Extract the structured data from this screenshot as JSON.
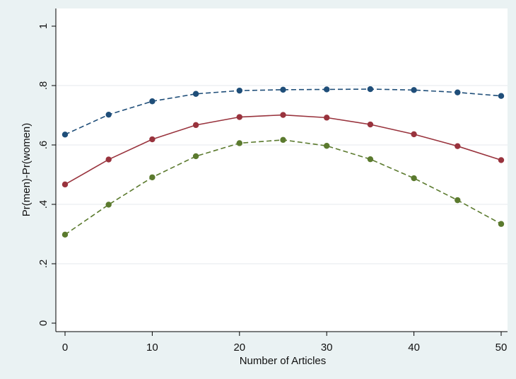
{
  "chart_data": {
    "type": "line",
    "xlabel": "Number of Articles",
    "ylabel": "Pr(men)-Pr(women)",
    "xlim": [
      0,
      50
    ],
    "ylim": [
      0,
      1
    ],
    "x_ticks": [
      0,
      10,
      20,
      30,
      40,
      50
    ],
    "x_tick_labels": [
      "0",
      "10",
      "20",
      "30",
      "40",
      "50"
    ],
    "y_ticks": [
      0,
      0.2,
      0.4,
      0.6,
      0.8,
      1
    ],
    "y_tick_labels": [
      "0",
      ".2",
      ".4",
      ".6",
      ".8",
      "1"
    ],
    "grid": "horizontal",
    "x": [
      0,
      5,
      10,
      15,
      20,
      25,
      30,
      35,
      40,
      45,
      50
    ],
    "series": [
      {
        "values": [
          0.635,
          0.702,
          0.747,
          0.772,
          0.783,
          0.786,
          0.787,
          0.788,
          0.785,
          0.777,
          0.765
        ],
        "color": "#1f4e79",
        "line_style": "dashed"
      },
      {
        "values": [
          0.467,
          0.551,
          0.619,
          0.667,
          0.694,
          0.701,
          0.692,
          0.669,
          0.636,
          0.596,
          0.549
        ],
        "color": "#99333d",
        "line_style": "solid"
      },
      {
        "values": [
          0.298,
          0.399,
          0.491,
          0.562,
          0.606,
          0.617,
          0.597,
          0.552,
          0.488,
          0.414,
          0.334
        ],
        "color": "#5b7a2e",
        "line_style": "dashed"
      }
    ]
  }
}
